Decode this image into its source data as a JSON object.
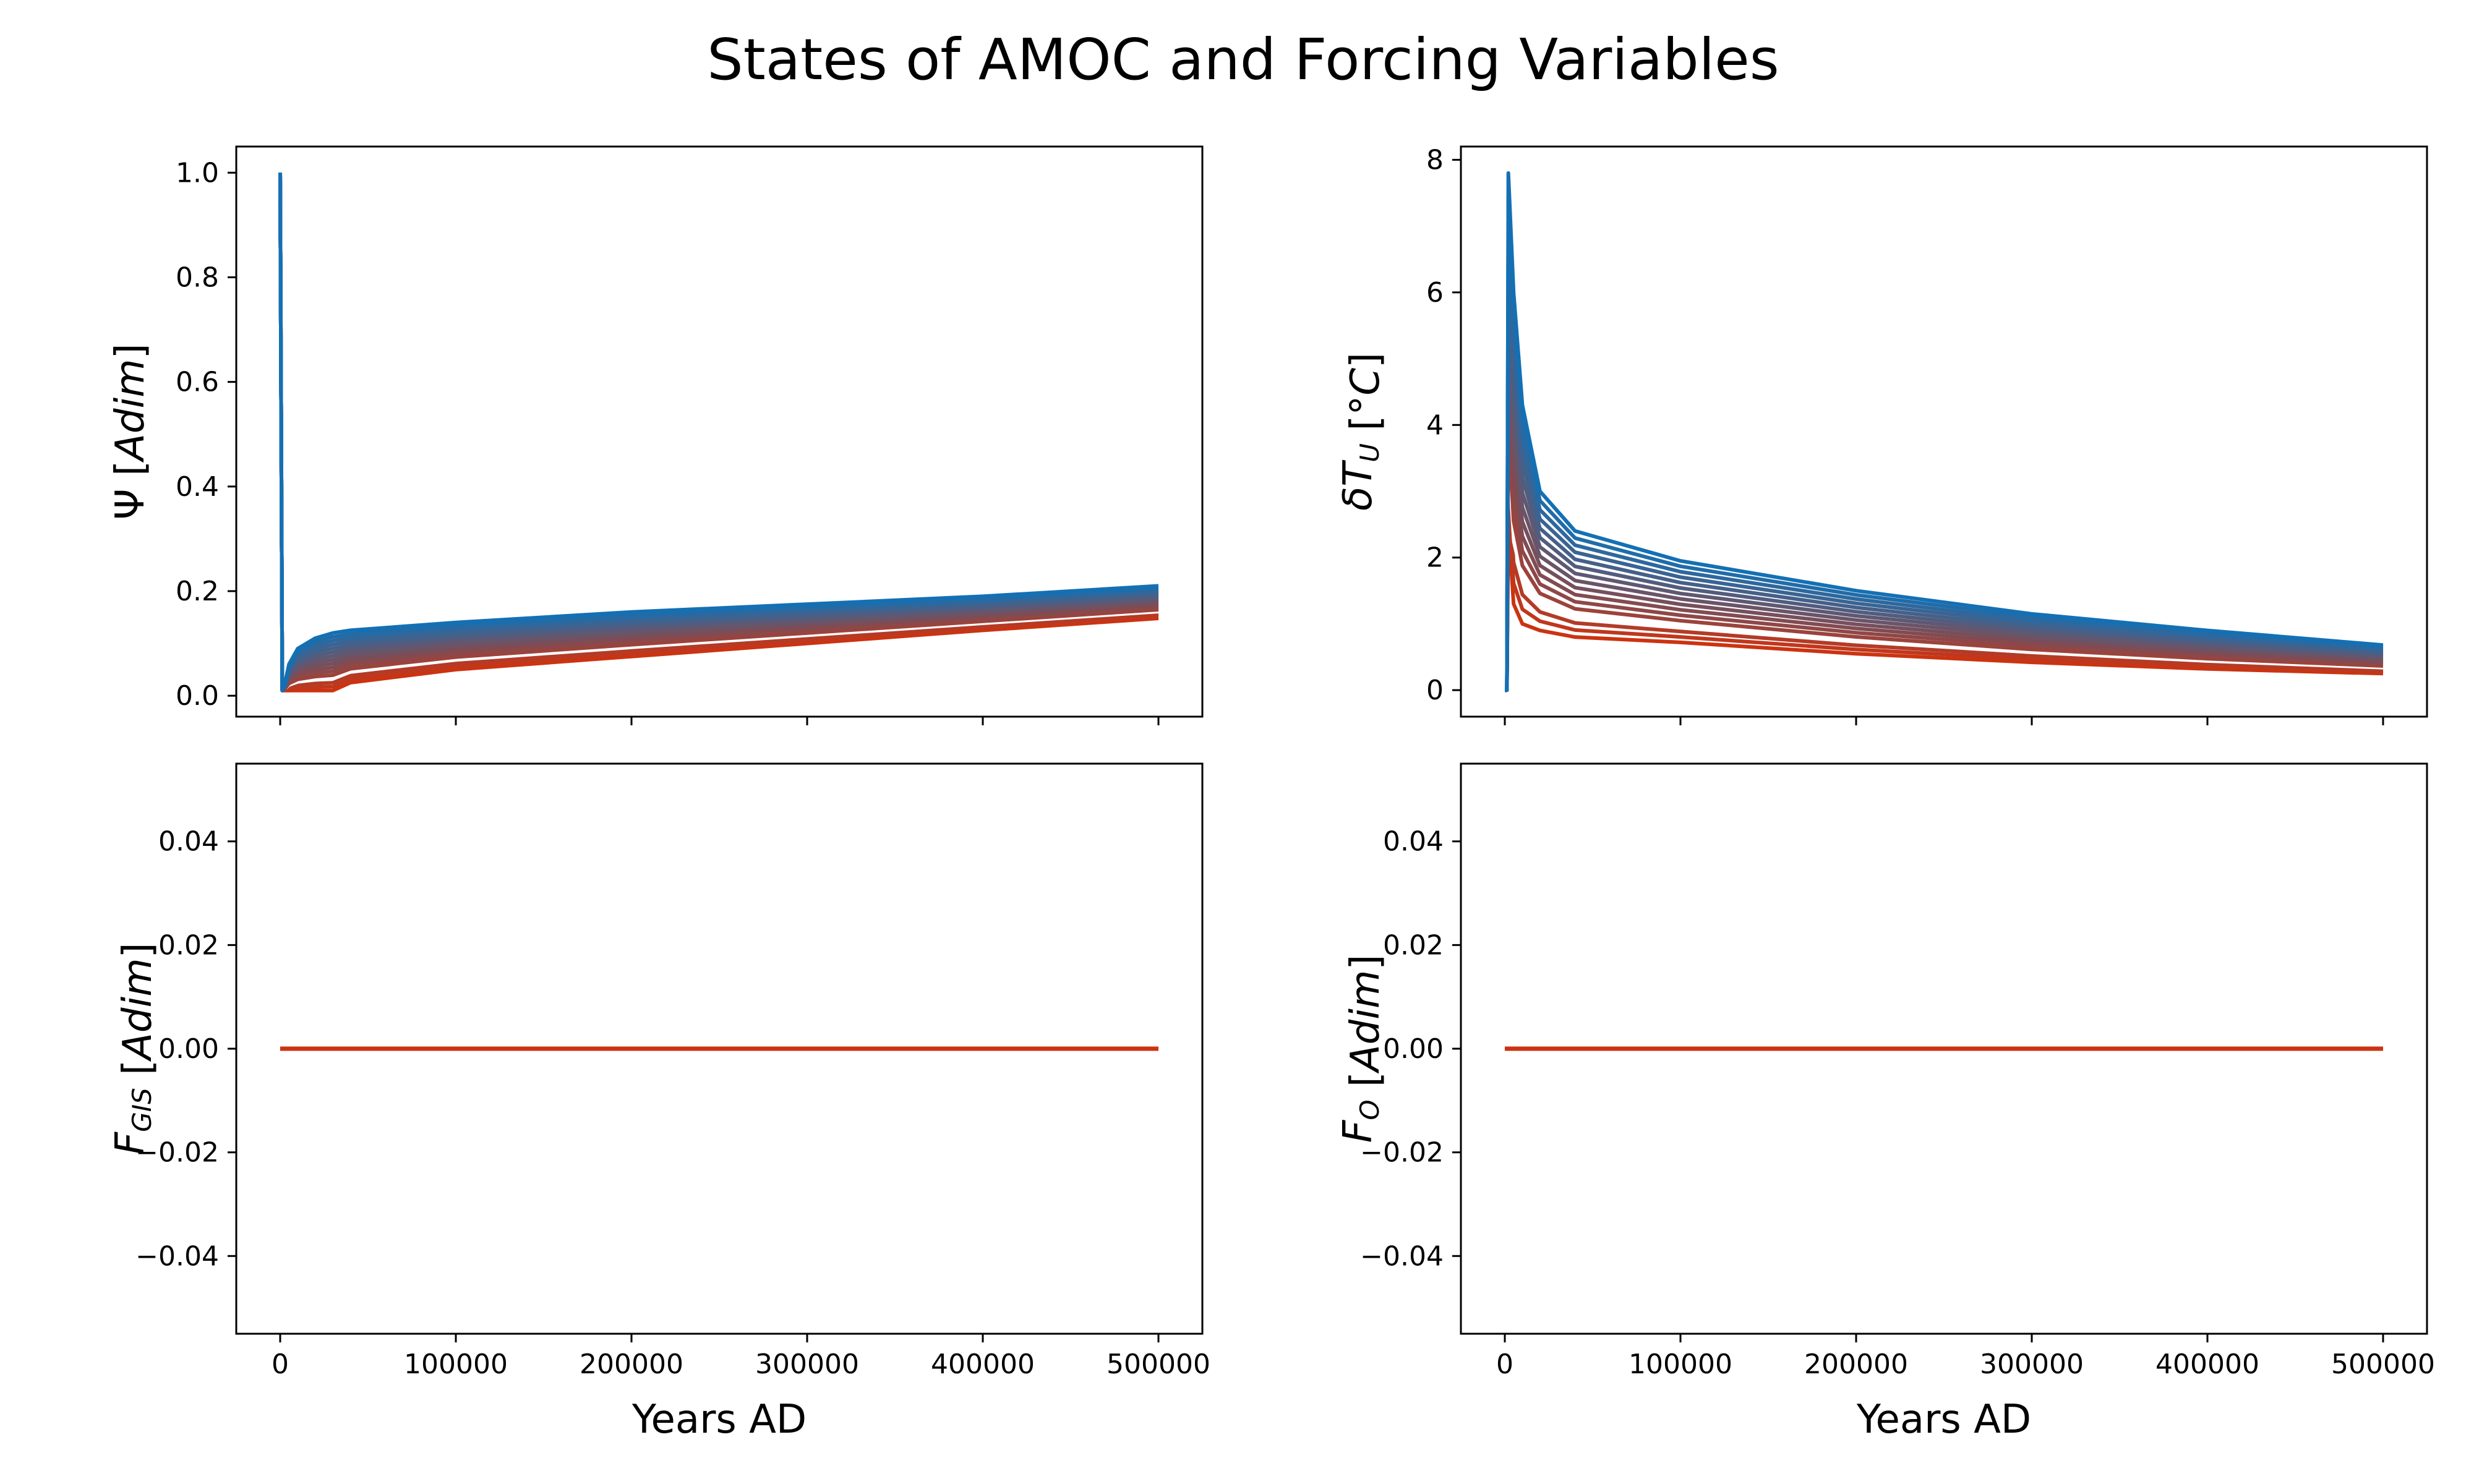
{
  "title": "States of AMOC and Forcing Variables",
  "colors": {
    "start": "#1470b4",
    "end": "#cc3311",
    "mid_white": "#ffffff"
  },
  "chart_data": [
    {
      "type": "line",
      "panel": "top-left",
      "ylabel": "Ψ [Adim]",
      "ylabel_parts": [
        [
          "Ψ [",
          "normal",
          ""
        ],
        [
          "Adim",
          "italic",
          ""
        ],
        [
          "]",
          "normal",
          ""
        ]
      ],
      "xlabel": "",
      "xlim": [
        -25000,
        525000
      ],
      "ylim": [
        -0.04,
        1.05
      ],
      "xticks": [
        0,
        100000,
        200000,
        300000,
        400000,
        500000
      ],
      "xtick_labels_shown": false,
      "yticks": [
        0.0,
        0.2,
        0.4,
        0.6,
        0.8,
        1.0
      ],
      "ytick_labels": [
        "0.0",
        "0.2",
        "0.4",
        "0.6",
        "0.8",
        "1.0"
      ],
      "grid": false,
      "series_count": 16,
      "series_note": "ensemble colored from blue to red; one white line",
      "series_low": {
        "x": [
          0,
          1200,
          2500,
          5000,
          10000,
          20000,
          30000,
          40000,
          100000,
          200000,
          300000,
          400000,
          500000
        ],
        "y": [
          1.0,
          0.01,
          0.01,
          0.01,
          0.01,
          0.01,
          0.01,
          0.025,
          0.05,
          0.075,
          0.1,
          0.125,
          0.148
        ]
      },
      "series_high": {
        "x": [
          0,
          1200,
          2500,
          5000,
          10000,
          20000,
          30000,
          40000,
          100000,
          200000,
          300000,
          400000,
          500000
        ],
        "y": [
          1.0,
          0.01,
          0.02,
          0.06,
          0.09,
          0.11,
          0.12,
          0.125,
          0.14,
          0.16,
          0.175,
          0.19,
          0.21
        ]
      }
    },
    {
      "type": "line",
      "panel": "top-right",
      "ylabel": "δT_U [°C]",
      "ylabel_parts": [
        [
          "δT",
          "italic",
          ""
        ],
        [
          "U",
          "italic",
          "sub"
        ],
        [
          " [°",
          "normal",
          ""
        ],
        [
          "C",
          "italic",
          ""
        ],
        [
          "]",
          "normal",
          ""
        ]
      ],
      "xlabel": "",
      "xlim": [
        -25000,
        525000
      ],
      "ylim": [
        -0.4,
        8.2
      ],
      "xticks": [
        0,
        100000,
        200000,
        300000,
        400000,
        500000
      ],
      "xtick_labels_shown": false,
      "yticks": [
        0,
        2,
        4,
        6,
        8
      ],
      "ytick_labels": [
        "0",
        "2",
        "4",
        "6",
        "8"
      ],
      "grid": false,
      "series_count": 16,
      "series_note": "ensemble colored from blue to red; one white line",
      "series_low": {
        "x": [
          0,
          1200,
          2000,
          5000,
          10000,
          20000,
          40000,
          100000,
          200000,
          300000,
          400000,
          500000
        ],
        "y": [
          0.0,
          0.0,
          2.5,
          1.3,
          1.0,
          0.9,
          0.8,
          0.72,
          0.55,
          0.42,
          0.32,
          0.25
        ]
      },
      "series_high": {
        "x": [
          0,
          1200,
          2000,
          5000,
          10000,
          20000,
          40000,
          100000,
          200000,
          300000,
          400000,
          500000
        ],
        "y": [
          0.0,
          0.0,
          7.8,
          6.0,
          4.3,
          3.0,
          2.4,
          1.95,
          1.5,
          1.15,
          0.9,
          0.68
        ]
      }
    },
    {
      "type": "line",
      "panel": "bottom-left",
      "ylabel": "F_GIS [Adim]",
      "ylabel_parts": [
        [
          "F",
          "italic",
          ""
        ],
        [
          "GIS",
          "italic",
          "sub"
        ],
        [
          " [",
          "normal",
          ""
        ],
        [
          "Adim",
          "italic",
          ""
        ],
        [
          "]",
          "normal",
          ""
        ]
      ],
      "xlabel": "Years AD",
      "xlim": [
        -25000,
        525000
      ],
      "ylim": [
        -0.055,
        0.055
      ],
      "xticks": [
        0,
        100000,
        200000,
        300000,
        400000,
        500000
      ],
      "xtick_labels": [
        "0",
        "100000",
        "200000",
        "300000",
        "400000",
        "500000"
      ],
      "yticks": [
        -0.04,
        -0.02,
        0.0,
        0.02,
        0.04
      ],
      "ytick_labels": [
        "−0.04",
        "−0.02",
        "0.00",
        "0.02",
        "0.04"
      ],
      "grid": false,
      "x": [
        0,
        500000
      ],
      "y": [
        0.0,
        0.0
      ]
    },
    {
      "type": "line",
      "panel": "bottom-right",
      "ylabel": "F_O [Adim]",
      "ylabel_parts": [
        [
          "F",
          "italic",
          ""
        ],
        [
          "O",
          "italic",
          "sub"
        ],
        [
          " [",
          "normal",
          ""
        ],
        [
          "Adim",
          "italic",
          ""
        ],
        [
          "]",
          "normal",
          ""
        ]
      ],
      "xlabel": "Years AD",
      "xlim": [
        -25000,
        525000
      ],
      "ylim": [
        -0.055,
        0.055
      ],
      "xticks": [
        0,
        100000,
        200000,
        300000,
        400000,
        500000
      ],
      "xtick_labels": [
        "0",
        "100000",
        "200000",
        "300000",
        "400000",
        "500000"
      ],
      "yticks": [
        -0.04,
        -0.02,
        0.0,
        0.02,
        0.04
      ],
      "ytick_labels": [
        "−0.04",
        "−0.02",
        "0.00",
        "0.02",
        "0.04"
      ],
      "grid": false,
      "x": [
        0,
        500000
      ],
      "y": [
        0.0,
        0.0
      ]
    }
  ]
}
